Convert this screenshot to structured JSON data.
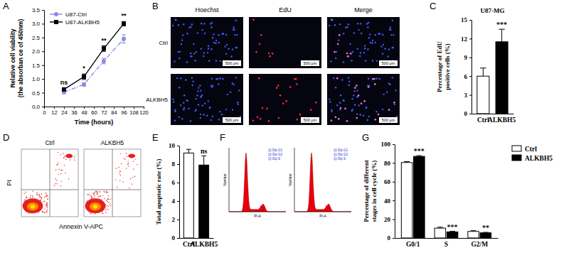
{
  "chart_data": [
    {
      "panel": "A",
      "type": "line",
      "x_label": "Time (hours)",
      "y_label": [
        "Relative cell viability",
        "(the absorban ce of 450nm)"
      ],
      "x": [
        24,
        48,
        72,
        96
      ],
      "series": [
        {
          "name": "U87-Ctrl",
          "color": "#8c8ce6",
          "marker": "circle",
          "line_style": "dashdot",
          "values": [
            0.52,
            0.8,
            1.65,
            2.45
          ],
          "errors": [
            0.05,
            0.06,
            0.1,
            0.15
          ]
        },
        {
          "name": "U87-ALKBH5",
          "color": "#000000",
          "marker": "square",
          "line_style": "solid",
          "values": [
            0.62,
            1.08,
            2.1,
            3.0
          ],
          "errors": [
            0.05,
            0.1,
            0.1,
            0.08
          ]
        }
      ],
      "annotations": [
        "ns",
        "*",
        "**",
        "**"
      ],
      "xlim": [
        0,
        120
      ],
      "xticks": [
        0,
        12,
        24,
        36,
        48,
        60,
        72,
        84,
        96,
        108,
        120
      ],
      "ylim": [
        0,
        3.5
      ],
      "yticks": [
        {
          "value": 0,
          "label": "0.0"
        },
        0.5,
        {
          "value": 1,
          "label": "1.0"
        },
        1.5,
        {
          "value": 2,
          "label": "2.0"
        },
        2.5,
        {
          "value": 3,
          "label": "3.0"
        },
        3.5
      ],
      "legend": "top-left"
    },
    {
      "panel": "B",
      "type": "image",
      "columns": [
        "Hoechst",
        "EdU",
        "Merge"
      ],
      "rows": [
        "Ctrl",
        "ALKBH5"
      ],
      "scale_bar": "500 μm"
    },
    {
      "panel": "C",
      "type": "bar",
      "title": "U87-MG",
      "y_label": [
        "Percentage of EdU",
        "positive cells (%)"
      ],
      "categories": [
        "Ctrl",
        "ALKBH5"
      ],
      "values": [
        6.0,
        11.5
      ],
      "errors": [
        1.3,
        2.0
      ],
      "colors": [
        "#ffffff",
        "#000000"
      ],
      "annotations": [
        null,
        "***"
      ],
      "ylim": [
        0,
        15
      ],
      "yticks": [
        0,
        3,
        6,
        9,
        12,
        15
      ]
    },
    {
      "panel": "D",
      "type": "image",
      "columns": [
        "Ctrl",
        "ALKBH5"
      ],
      "x_label": "Annexin V-APC",
      "y_label": "PI"
    },
    {
      "panel": "E",
      "type": "bar",
      "y_label": [
        "Total apoptotic rate (%)"
      ],
      "categories": [
        "Ctrl",
        "ALKBH5"
      ],
      "values": [
        9.2,
        7.9
      ],
      "errors": [
        0.4,
        1.0
      ],
      "colors": [
        "#ffffff",
        "#000000"
      ],
      "annotations": [
        null,
        "ns"
      ],
      "ylim": [
        0,
        10
      ],
      "yticks": [
        0,
        2,
        4,
        6,
        8,
        10
      ]
    },
    {
      "panel": "F",
      "type": "image",
      "columns": [
        null,
        null
      ],
      "x_label": "PI-A",
      "y_label": "Number",
      "labels": [
        "Dip G1",
        "Dip G2",
        "Dip S"
      ]
    },
    {
      "panel": "G",
      "type": "bar",
      "y_label": [
        "Percentage of different",
        "stages in cell cycle (%)"
      ],
      "categories": [
        "G0/1",
        "S",
        "G2/M"
      ],
      "series": [
        {
          "name": "Ctrl",
          "color": "#ffffff",
          "values": [
            80.5,
            10.5,
            7.0
          ],
          "errors": [
            1.0,
            1.0,
            0.8
          ],
          "annotations": [
            null,
            null,
            null
          ]
        },
        {
          "name": "ALKBH5",
          "color": "#000000",
          "values": [
            87.0,
            6.5,
            5.5
          ],
          "errors": [
            0.8,
            0.6,
            0.5
          ],
          "annotations": [
            "***",
            "***",
            "**"
          ]
        }
      ],
      "legend": "right",
      "ylim": [
        0,
        100
      ],
      "yticks": [
        0,
        20,
        40,
        60,
        80,
        100
      ]
    }
  ]
}
